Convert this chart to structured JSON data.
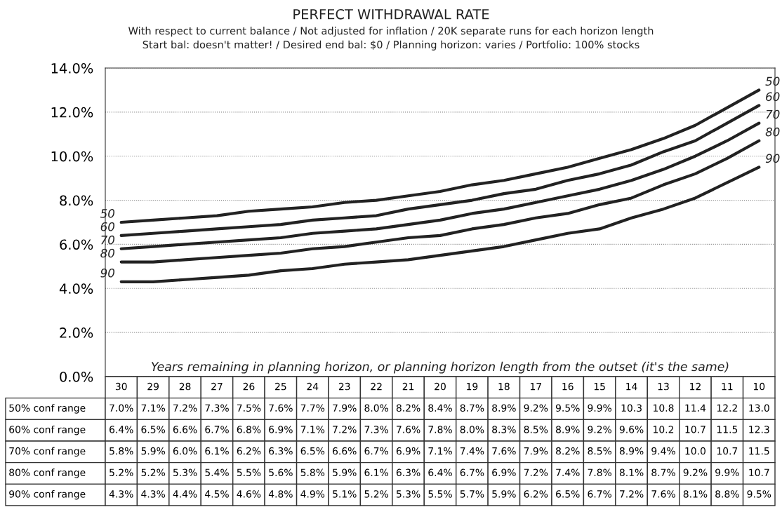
{
  "chart_data": {
    "type": "line",
    "title": "PERFECT WITHDRAWAL RATE",
    "subtitle": "With respect to current balance / Not adjusted for inflation / 20K separate runs for each horizon length\nStart bal: doesn't matter! / Desired end bal: $0 / Planning horizon: varies / Portfolio: 100% stocks",
    "xlabel": "Years remaining in planning horizon, or planning horizon length from the outset (it's the same)",
    "categories": [
      "30",
      "29",
      "28",
      "27",
      "26",
      "25",
      "24",
      "23",
      "22",
      "21",
      "20",
      "19",
      "18",
      "17",
      "16",
      "15",
      "14",
      "13",
      "12",
      "11",
      "10"
    ],
    "series": [
      {
        "name": "50",
        "color": "#222222",
        "values": [
          7.0,
          7.1,
          7.2,
          7.3,
          7.5,
          7.6,
          7.7,
          7.9,
          8.0,
          8.2,
          8.4,
          8.7,
          8.9,
          9.2,
          9.5,
          9.9,
          10.3,
          10.8,
          11.4,
          12.2,
          13.0
        ],
        "value_labels": [
          "7.0%",
          "7.1%",
          "7.2%",
          "7.3%",
          "7.5%",
          "7.6%",
          "7.7%",
          "7.9%",
          "8.0%",
          "8.2%",
          "8.4%",
          "8.7%",
          "8.9%",
          "9.2%",
          "9.5%",
          "9.9%",
          "10.3",
          "10.8",
          "11.4",
          "12.2",
          "13.0"
        ]
      },
      {
        "name": "60",
        "color": "#222222",
        "values": [
          6.4,
          6.5,
          6.6,
          6.7,
          6.8,
          6.9,
          7.1,
          7.2,
          7.3,
          7.6,
          7.8,
          8.0,
          8.3,
          8.5,
          8.9,
          9.2,
          9.6,
          10.2,
          10.7,
          11.5,
          12.3
        ],
        "value_labels": [
          "6.4%",
          "6.5%",
          "6.6%",
          "6.7%",
          "6.8%",
          "6.9%",
          "7.1%",
          "7.2%",
          "7.3%",
          "7.6%",
          "7.8%",
          "8.0%",
          "8.3%",
          "8.5%",
          "8.9%",
          "9.2%",
          "9.6%",
          "10.2",
          "10.7",
          "11.5",
          "12.3"
        ]
      },
      {
        "name": "70",
        "color": "#222222",
        "values": [
          5.8,
          5.9,
          6.0,
          6.1,
          6.2,
          6.3,
          6.5,
          6.6,
          6.7,
          6.9,
          7.1,
          7.4,
          7.6,
          7.9,
          8.2,
          8.5,
          8.9,
          9.4,
          10.0,
          10.7,
          11.5
        ],
        "value_labels": [
          "5.8%",
          "5.9%",
          "6.0%",
          "6.1%",
          "6.2%",
          "6.3%",
          "6.5%",
          "6.6%",
          "6.7%",
          "6.9%",
          "7.1%",
          "7.4%",
          "7.6%",
          "7.9%",
          "8.2%",
          "8.5%",
          "8.9%",
          "9.4%",
          "10.0",
          "10.7",
          "11.5"
        ]
      },
      {
        "name": "80",
        "color": "#222222",
        "values": [
          5.2,
          5.2,
          5.3,
          5.4,
          5.5,
          5.6,
          5.8,
          5.9,
          6.1,
          6.3,
          6.4,
          6.7,
          6.9,
          7.2,
          7.4,
          7.8,
          8.1,
          8.7,
          9.2,
          9.9,
          10.7
        ],
        "value_labels": [
          "5.2%",
          "5.2%",
          "5.3%",
          "5.4%",
          "5.5%",
          "5.6%",
          "5.8%",
          "5.9%",
          "6.1%",
          "6.3%",
          "6.4%",
          "6.7%",
          "6.9%",
          "7.2%",
          "7.4%",
          "7.8%",
          "8.1%",
          "8.7%",
          "9.2%",
          "9.9%",
          "10.7"
        ]
      },
      {
        "name": "90",
        "color": "#222222",
        "values": [
          4.3,
          4.3,
          4.4,
          4.5,
          4.6,
          4.8,
          4.9,
          5.1,
          5.2,
          5.3,
          5.5,
          5.7,
          5.9,
          6.2,
          6.5,
          6.7,
          7.2,
          7.6,
          8.1,
          8.8,
          9.5
        ],
        "value_labels": [
          "4.3%",
          "4.3%",
          "4.4%",
          "4.5%",
          "4.6%",
          "4.8%",
          "4.9%",
          "5.1%",
          "5.2%",
          "5.3%",
          "5.5%",
          "5.7%",
          "5.9%",
          "6.2%",
          "6.5%",
          "6.7%",
          "7.2%",
          "7.6%",
          "8.1%",
          "8.8%",
          "9.5%"
        ]
      }
    ],
    "annotations": [
      "50% conf range",
      "60% conf range",
      "70% conf range",
      "80% conf range",
      "90% conf range"
    ],
    "ylim": [
      0,
      14
    ],
    "yticks": [
      {
        "value": 0,
        "label": "0.0%"
      },
      {
        "value": 2,
        "label": "2.0%"
      },
      {
        "value": 4,
        "label": "4.0%"
      },
      {
        "value": 6,
        "label": "6.0%"
      },
      {
        "value": 8,
        "label": "8.0%"
      },
      {
        "value": 10,
        "label": "10.0%"
      },
      {
        "value": 12,
        "label": "12.0%"
      },
      {
        "value": 14,
        "label": "14.0%"
      }
    ],
    "grid": "y",
    "tick_labels": "y",
    "marker": "none",
    "line_style": "solid"
  }
}
